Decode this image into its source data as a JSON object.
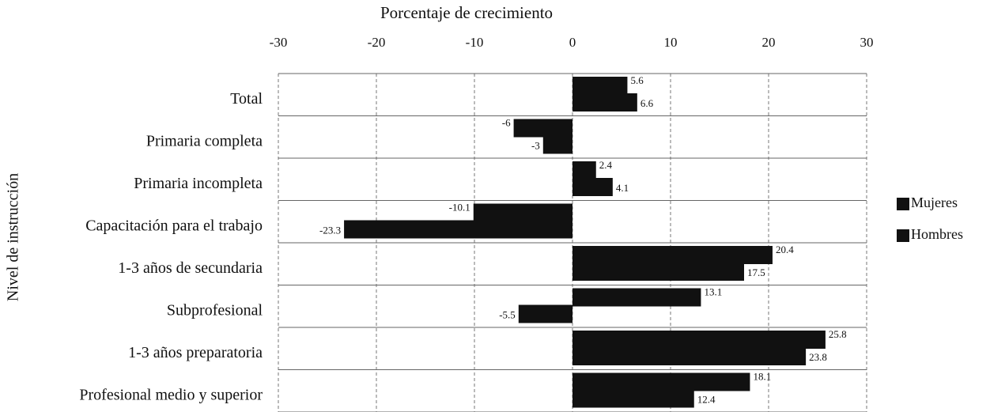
{
  "chart_data": {
    "type": "hbar",
    "title": "Porcentaje de crecimiento",
    "ylabel": "Nivel de instrucción",
    "categories": [
      "Total",
      "Primaria completa",
      "Primaria incompleta",
      "Capacitación para el trabajo",
      "1-3 años de secundaria",
      "Subprofesional",
      "1-3 años preparatoria",
      "Profesional medio y superior"
    ],
    "series": [
      {
        "name": "Mujeres",
        "color": "#111111",
        "values": [
          5.6,
          -6,
          2.4,
          -10.1,
          20.4,
          13.1,
          25.8,
          18.1
        ]
      },
      {
        "name": "Hombres",
        "color": "#111111",
        "values": [
          6.6,
          -3,
          4.1,
          -23.3,
          17.5,
          -5.5,
          23.8,
          12.4
        ]
      }
    ],
    "xlim": [
      -30,
      30
    ],
    "xticks": [
      -30,
      -20,
      -10,
      0,
      10,
      20,
      30
    ],
    "grid": true,
    "legend": "right"
  }
}
